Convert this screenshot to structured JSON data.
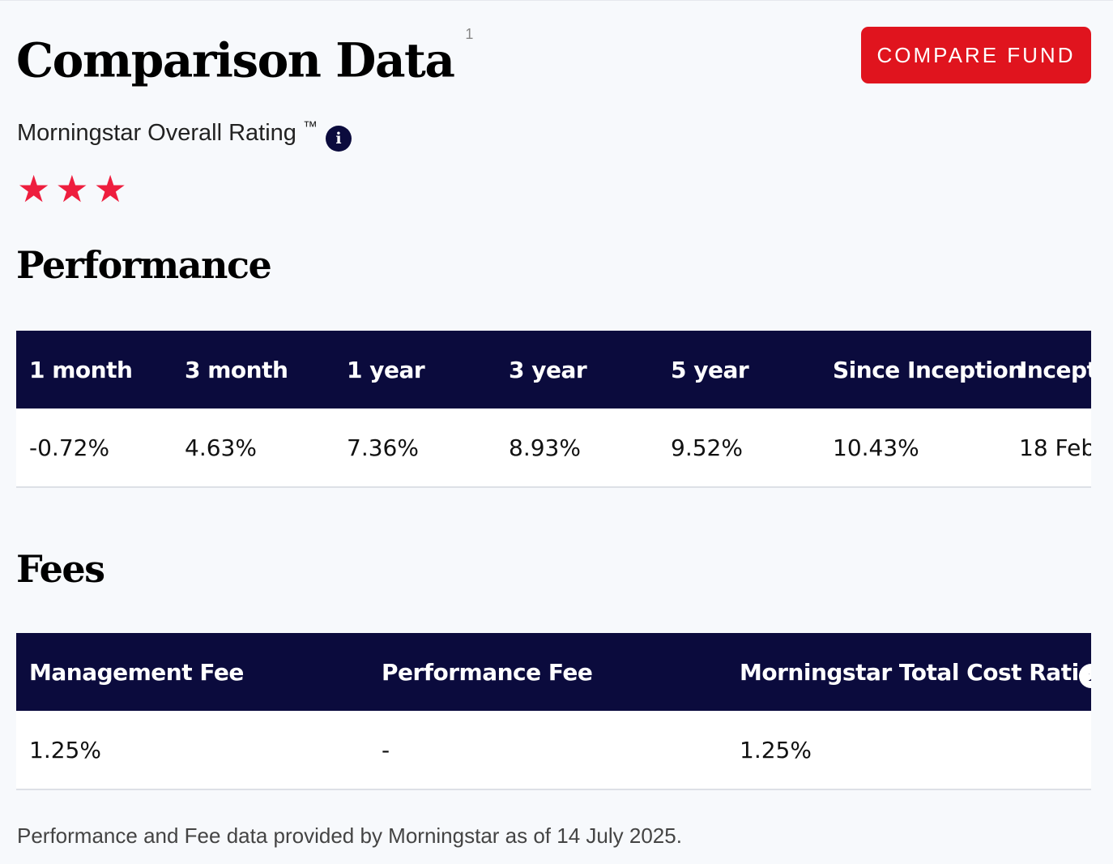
{
  "header": {
    "title": "Comparison Data",
    "title_superscript": "1",
    "compare_button": "COMPARE FUND"
  },
  "rating": {
    "label": "Morningstar Overall Rating",
    "trademark": "™",
    "info_icon": "info-icon",
    "stars": 3,
    "star_glyph": "★",
    "star_color": "#ee1e3e"
  },
  "performance": {
    "title": "Performance",
    "columns": [
      "1 month",
      "3 month",
      "1 year",
      "3 year",
      "5 year",
      "Since Inception",
      "Incept"
    ],
    "values": [
      "-0.72%",
      "4.63%",
      "7.36%",
      "8.93%",
      "9.52%",
      "10.43%",
      "18 Feb"
    ]
  },
  "fees": {
    "title": "Fees",
    "columns": [
      "Management Fee",
      "Performance Fee",
      "Morningstar Total Cost Ratio"
    ],
    "header_info_icon": "i",
    "values": [
      "1.25%",
      "-",
      "1.25%"
    ]
  },
  "footnote": "Performance and Fee data provided by Morningstar as of 14 July 2025.",
  "colors": {
    "accent_red": "#e0141e",
    "navy": "#0b0b3d",
    "background": "#f7f9fc"
  }
}
